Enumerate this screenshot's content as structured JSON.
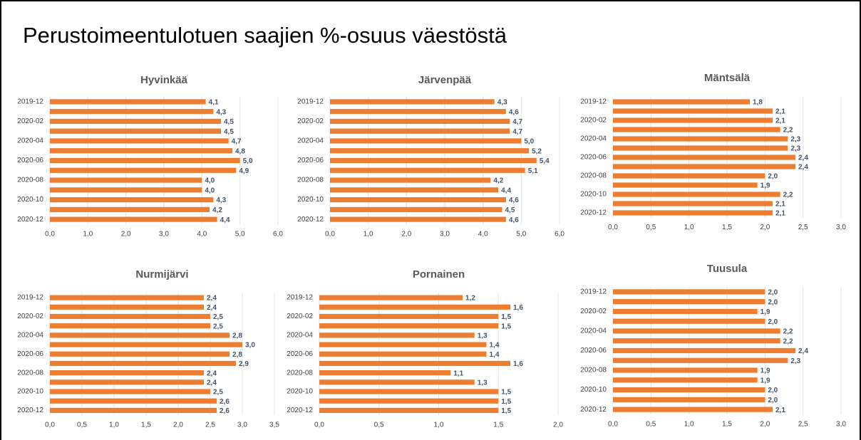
{
  "title": "Perustoimeentulotuen saajien %-osuus väestöstä",
  "chart_data": [
    {
      "type": "bar",
      "orientation": "horizontal",
      "title": "Hyvinkää",
      "color": "#ed7d31",
      "grid": true,
      "categories": [
        "2019-12",
        null,
        "2020-02",
        null,
        "2020-04",
        null,
        "2020-06",
        null,
        "2020-08",
        null,
        "2020-10",
        null,
        "2020-12"
      ],
      "values": [
        4.1,
        4.3,
        4.5,
        4.5,
        4.7,
        4.8,
        5.0,
        4.9,
        4.0,
        4.0,
        4.3,
        4.2,
        4.4
      ],
      "value_labels": [
        "4,1",
        "4,3",
        "4,5",
        "4,5",
        "4,7",
        "4,8",
        "5,0",
        "4,9",
        "4,0",
        "4,0",
        "4,3",
        "4,2",
        "4,4"
      ],
      "xlim": [
        0,
        6
      ],
      "xticks": [
        {
          "value": 0,
          "label": "0,0"
        },
        {
          "value": 1,
          "label": "1,0"
        },
        {
          "value": 2,
          "label": "2,0"
        },
        {
          "value": 3,
          "label": "3,0"
        },
        {
          "value": 4,
          "label": "4,0"
        },
        {
          "value": 5,
          "label": "5,0"
        },
        {
          "value": 6,
          "label": "6,0"
        }
      ]
    },
    {
      "type": "bar",
      "orientation": "horizontal",
      "title": "Järvenpää",
      "color": "#ed7d31",
      "grid": true,
      "categories": [
        "2019-12",
        null,
        "2020-02",
        null,
        "2020-04",
        null,
        "2020-06",
        null,
        "2020-08",
        null,
        "2020-10",
        null,
        "2020-12"
      ],
      "values": [
        4.3,
        4.6,
        4.7,
        4.7,
        5.0,
        5.2,
        5.4,
        5.1,
        4.2,
        4.4,
        4.6,
        4.5,
        4.6
      ],
      "value_labels": [
        "4,3",
        "4,6",
        "4,7",
        "4,7",
        "5,0",
        "5,2",
        "5,4",
        "5,1",
        "4,2",
        "4,4",
        "4,6",
        "4,5",
        "4,6"
      ],
      "xlim": [
        0,
        6
      ],
      "xticks": [
        {
          "value": 0,
          "label": "0,0"
        },
        {
          "value": 1,
          "label": "1,0"
        },
        {
          "value": 2,
          "label": "2,0"
        },
        {
          "value": 3,
          "label": "3,0"
        },
        {
          "value": 4,
          "label": "4,0"
        },
        {
          "value": 5,
          "label": "5,0"
        },
        {
          "value": 6,
          "label": "6,0"
        }
      ]
    },
    {
      "type": "bar",
      "orientation": "horizontal",
      "title": "Mäntsälä",
      "color": "#ed7d31",
      "grid": true,
      "categories": [
        "2019-12",
        null,
        "2020-02",
        null,
        "2020-04",
        null,
        "2020-06",
        null,
        "2020-08",
        null,
        "2020-10",
        null,
        "2020-12"
      ],
      "values": [
        1.8,
        2.1,
        2.1,
        2.2,
        2.3,
        2.3,
        2.4,
        2.4,
        2.0,
        1.9,
        2.2,
        2.1,
        2.1
      ],
      "value_labels": [
        "1,8",
        "2,1",
        "2,1",
        "2,2",
        "2,3",
        "2,3",
        "2,4",
        "2,4",
        "2,0",
        "1,9",
        "2,2",
        "2,1",
        "2,1"
      ],
      "xlim": [
        0,
        3
      ],
      "xticks": [
        {
          "value": 0,
          "label": "0,0"
        },
        {
          "value": 0.5,
          "label": "0,5"
        },
        {
          "value": 1,
          "label": "1,0"
        },
        {
          "value": 1.5,
          "label": "1,5"
        },
        {
          "value": 2,
          "label": "2,0"
        },
        {
          "value": 2.5,
          "label": "2,5"
        },
        {
          "value": 3,
          "label": "3,0"
        }
      ]
    },
    {
      "type": "bar",
      "orientation": "horizontal",
      "title": "Nurmijärvi",
      "color": "#ed7d31",
      "grid": true,
      "categories": [
        "2019-12",
        null,
        "2020-02",
        null,
        "2020-04",
        null,
        "2020-06",
        null,
        "2020-08",
        null,
        "2020-10",
        null,
        "2020-12"
      ],
      "values": [
        2.4,
        2.4,
        2.5,
        2.5,
        2.8,
        3.0,
        2.8,
        2.9,
        2.4,
        2.4,
        2.5,
        2.6,
        2.6
      ],
      "value_labels": [
        "2,4",
        "2,4",
        "2,5",
        "2,5",
        "2,8",
        "3,0",
        "2,8",
        "2,9",
        "2,4",
        "2,4",
        "2,5",
        "2,6",
        "2,6"
      ],
      "xlim": [
        0,
        3.5
      ],
      "xticks": [
        {
          "value": 0,
          "label": "0,0"
        },
        {
          "value": 0.5,
          "label": "0,5"
        },
        {
          "value": 1,
          "label": "1,0"
        },
        {
          "value": 1.5,
          "label": "1,5"
        },
        {
          "value": 2,
          "label": "2,0"
        },
        {
          "value": 2.5,
          "label": "2,5"
        },
        {
          "value": 3,
          "label": "3,0"
        },
        {
          "value": 3.5,
          "label": "3,5"
        }
      ]
    },
    {
      "type": "bar",
      "orientation": "horizontal",
      "title": "Pornainen",
      "color": "#ed7d31",
      "grid": true,
      "categories": [
        "2019-12",
        null,
        "2020-02",
        null,
        "2020-04",
        null,
        "2020-06",
        null,
        "2020-08",
        null,
        "2020-10",
        null,
        "2020-12"
      ],
      "values": [
        1.2,
        1.6,
        1.5,
        1.5,
        1.3,
        1.4,
        1.4,
        1.6,
        1.1,
        1.3,
        1.5,
        1.5,
        1.5
      ],
      "value_labels": [
        "1,2",
        "1,6",
        "1,5",
        "1,5",
        "1,3",
        "1,4",
        "1,4",
        "1,6",
        "1,1",
        "1,3",
        "1,5",
        "1,5",
        "1,5"
      ],
      "xlim": [
        0,
        2
      ],
      "xticks": [
        {
          "value": 0,
          "label": "0,0"
        },
        {
          "value": 0.5,
          "label": "0,5"
        },
        {
          "value": 1,
          "label": "1,0"
        },
        {
          "value": 1.5,
          "label": "1,5"
        },
        {
          "value": 2,
          "label": "2,0"
        }
      ]
    },
    {
      "type": "bar",
      "orientation": "horizontal",
      "title": "Tuusula",
      "color": "#ed7d31",
      "grid": true,
      "categories": [
        "2019-12",
        null,
        "2020-02",
        null,
        "2020-04",
        null,
        "2020-06",
        null,
        "2020-08",
        null,
        "2020-10",
        null,
        "2020-12"
      ],
      "values": [
        2.0,
        2.0,
        1.9,
        2.0,
        2.2,
        2.2,
        2.4,
        2.3,
        1.9,
        1.9,
        2.0,
        2.0,
        2.1
      ],
      "value_labels": [
        "2,0",
        "2,0",
        "1,9",
        "2,0",
        "2,2",
        "2,2",
        "2,4",
        "2,3",
        "1,9",
        "1,9",
        "2,0",
        "2,0",
        "2,1"
      ],
      "xlim": [
        0,
        3
      ],
      "xticks": [
        {
          "value": 0,
          "label": "0,0"
        },
        {
          "value": 0.5,
          "label": "0,5"
        },
        {
          "value": 1,
          "label": "1,0"
        },
        {
          "value": 1.5,
          "label": "1,5"
        },
        {
          "value": 2,
          "label": "2,0"
        },
        {
          "value": 2.5,
          "label": "2,5"
        },
        {
          "value": 3,
          "label": "3,0"
        }
      ]
    }
  ]
}
